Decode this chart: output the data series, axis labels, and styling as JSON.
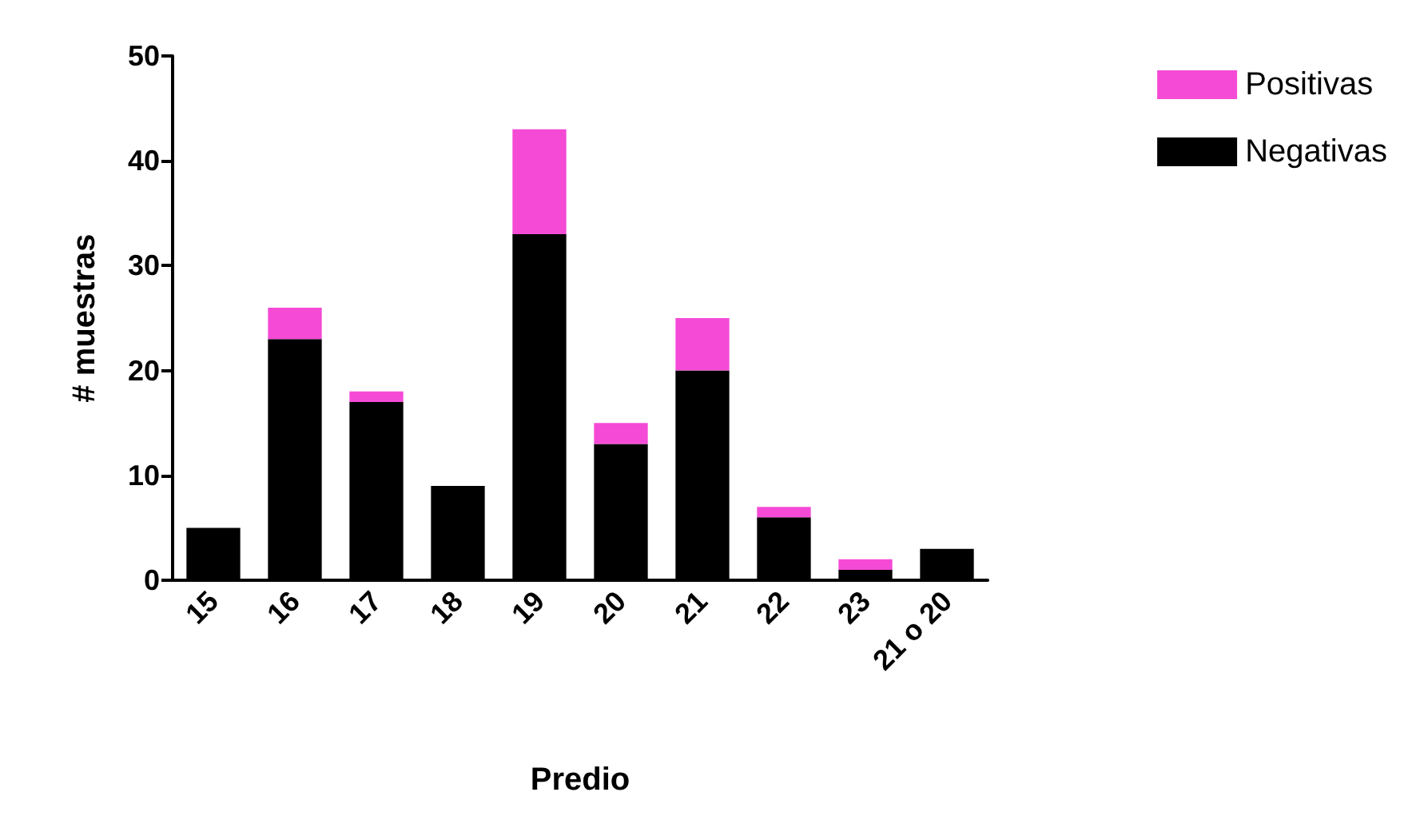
{
  "chart_data": {
    "type": "bar",
    "stacked": true,
    "xlabel": "Predio",
    "ylabel": "# muestras",
    "categories": [
      "15",
      "16",
      "17",
      "18",
      "19",
      "20",
      "21",
      "22",
      "23",
      "21 o 20"
    ],
    "series": [
      {
        "name": "Negativas",
        "color": "#000000",
        "values": [
          5,
          23,
          17,
          9,
          33,
          13,
          20,
          6,
          1,
          3
        ]
      },
      {
        "name": "Positivas",
        "color": "#f54ad6",
        "values": [
          0,
          3,
          1,
          0,
          10,
          2,
          5,
          1,
          1,
          0
        ]
      }
    ],
    "ylim": [
      0,
      50
    ],
    "yticks": [
      0,
      10,
      20,
      30,
      40,
      50
    ],
    "grid": false,
    "legend": "top right"
  }
}
